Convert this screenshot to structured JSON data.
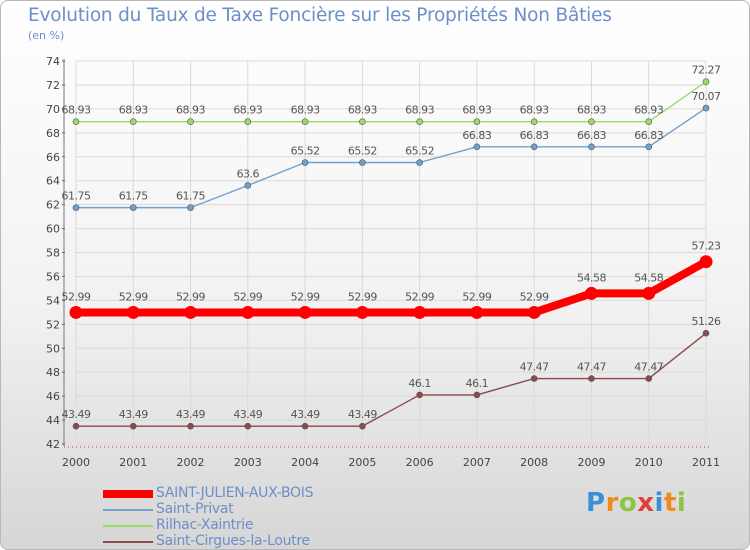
{
  "chart_data": {
    "type": "line",
    "title": "Evolution du Taux de Taxe Foncière sur les Propriétés Non Bâties",
    "subtitle": "(en %)",
    "xlabel": "",
    "ylabel": "",
    "categories": [
      "2000",
      "2001",
      "2002",
      "2003",
      "2004",
      "2005",
      "2006",
      "2007",
      "2008",
      "2009",
      "2010",
      "2011"
    ],
    "ylim": [
      42,
      74
    ],
    "yticks": [
      42,
      44,
      46,
      48,
      50,
      52,
      54,
      56,
      58,
      60,
      62,
      64,
      66,
      68,
      70,
      72,
      74
    ],
    "grid": true,
    "legend_position": "bottom-left",
    "series": [
      {
        "name": "SAINT-JULIEN-AUX-BOIS",
        "color": "#ff0000",
        "values": [
          52.99,
          52.99,
          52.99,
          52.99,
          52.99,
          52.99,
          52.99,
          52.99,
          52.99,
          54.58,
          54.58,
          57.23
        ],
        "labels": [
          "52.99",
          "52.99",
          "52.99",
          "52.99",
          "52.99",
          "52.99",
          "52.99",
          "52.99",
          "52.99",
          "54.58",
          "54.58",
          "57.23"
        ]
      },
      {
        "name": "Saint-Privat",
        "color": "#6fa0cf",
        "values": [
          61.75,
          61.75,
          61.75,
          63.6,
          65.52,
          65.52,
          65.52,
          66.83,
          66.83,
          66.83,
          66.83,
          70.07
        ],
        "labels": [
          "61.75",
          "61.75",
          "61.75",
          "63.6",
          "65.52",
          "65.52",
          "65.52",
          "66.83",
          "66.83",
          "66.83",
          "66.83",
          "70.07"
        ]
      },
      {
        "name": "Rilhac-Xaintrie",
        "color": "#99dd66",
        "values": [
          68.93,
          68.93,
          68.93,
          68.93,
          68.93,
          68.93,
          68.93,
          68.93,
          68.93,
          68.93,
          68.93,
          72.27
        ],
        "labels": [
          "68.93",
          "68.93",
          "68.93",
          "68.93",
          "68.93",
          "68.93",
          "68.93",
          "68.93",
          "68.93",
          "68.93",
          "68.93",
          "72.27"
        ]
      },
      {
        "name": "Saint-Cirgues-la-Loutre",
        "color": "#8c4a4a",
        "values": [
          43.49,
          43.49,
          43.49,
          43.49,
          43.49,
          43.49,
          46.1,
          46.1,
          47.47,
          47.47,
          47.47,
          51.26
        ],
        "labels": [
          "43.49",
          "43.49",
          "43.49",
          "43.49",
          "43.49",
          "43.49",
          "46.1",
          "46.1",
          "47.47",
          "47.47",
          "47.47",
          "51.26"
        ]
      }
    ]
  },
  "logo": {
    "text": "Proxiti",
    "letters": [
      {
        "ch": "P",
        "color": "#3a8fd6"
      },
      {
        "ch": "r",
        "color": "#f08a1c"
      },
      {
        "ch": "o",
        "color": "#8cc63f"
      },
      {
        "ch": "x",
        "color": "#e23c3c"
      },
      {
        "ch": "i",
        "color": "#3a8fd6"
      },
      {
        "ch": "t",
        "color": "#f08a1c"
      },
      {
        "ch": "i",
        "color": "#8cc63f"
      }
    ]
  }
}
